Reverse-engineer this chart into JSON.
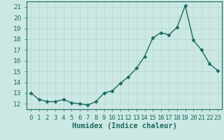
{
  "x": [
    0,
    1,
    2,
    3,
    4,
    5,
    6,
    7,
    8,
    9,
    10,
    11,
    12,
    13,
    14,
    15,
    16,
    17,
    18,
    19,
    20,
    21,
    22,
    23
  ],
  "y": [
    13.0,
    12.4,
    12.2,
    12.2,
    12.4,
    12.1,
    12.0,
    11.9,
    12.2,
    13.0,
    13.2,
    13.9,
    14.5,
    15.3,
    16.4,
    18.1,
    18.6,
    18.4,
    19.1,
    21.1,
    17.9,
    17.0,
    15.7,
    15.1
  ],
  "xlabel": "Humidex (Indice chaleur)",
  "ylim": [
    11.5,
    21.5
  ],
  "xlim": [
    -0.5,
    23.5
  ],
  "yticks": [
    12,
    13,
    14,
    15,
    16,
    17,
    18,
    19,
    20,
    21
  ],
  "xtick_labels": [
    "0",
    "1",
    "2",
    "3",
    "4",
    "5",
    "6",
    "7",
    "8",
    "9",
    "10",
    "11",
    "12",
    "13",
    "14",
    "15",
    "16",
    "17",
    "18",
    "19",
    "20",
    "21",
    "22",
    "23"
  ],
  "line_color": "#1a6b5e",
  "bg_color": "#cce8e4",
  "grid_color": "#b8d8d4",
  "marker": "D",
  "marker_size": 2.5,
  "line_width": 1.0,
  "xlabel_fontsize": 7.5,
  "tick_fontsize": 6.5
}
